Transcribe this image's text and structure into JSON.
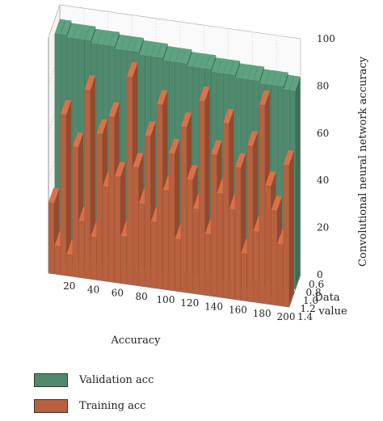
{
  "chart_data": {
    "type": "bar",
    "subtype": "3d-stacked-bar",
    "xlabel": "Accuracy",
    "ylabel": "Data value",
    "zlabel": "Convolutional neural network accuracy",
    "x_ticks": [
      20,
      40,
      60,
      80,
      100,
      120,
      140,
      160,
      180,
      200
    ],
    "y_ticks": [
      "0.6",
      "0.8",
      "1.0",
      "1.2",
      "1.4"
    ],
    "z_ticks": [
      0,
      20,
      40,
      60,
      80,
      100
    ],
    "xlim": [
      0,
      200
    ],
    "zlim": [
      0,
      100
    ],
    "grid": true,
    "legend_position": "bottom-left",
    "colors": {
      "validation": "#4f8a6e",
      "training": "#b9603e"
    },
    "series": [
      {
        "name": "Validation acc",
        "values": [
          94,
          94,
          93,
          93,
          93,
          93,
          92,
          92,
          92,
          92,
          91,
          91,
          91,
          91,
          90,
          90,
          90,
          90,
          89,
          89,
          89,
          89,
          88,
          88,
          88,
          88,
          87,
          87,
          87,
          87,
          86,
          86,
          86,
          86,
          85,
          85,
          85,
          85,
          84,
          84
        ]
      },
      {
        "name": "Training acc",
        "values": [
          30,
          12,
          68,
          9,
          55,
          24,
          80,
          18,
          62,
          40,
          70,
          45,
          20,
          88,
          50,
          35,
          64,
          28,
          78,
          42,
          58,
          22,
          70,
          48,
          36,
          82,
          26,
          60,
          44,
          74,
          38,
          56,
          20,
          66,
          30,
          84,
          50,
          40,
          26,
          60
        ]
      }
    ]
  },
  "legend": {
    "items": [
      {
        "label": "Validation acc",
        "color": "#4f8a6e"
      },
      {
        "label": "Training acc",
        "color": "#b9603e"
      }
    ]
  }
}
